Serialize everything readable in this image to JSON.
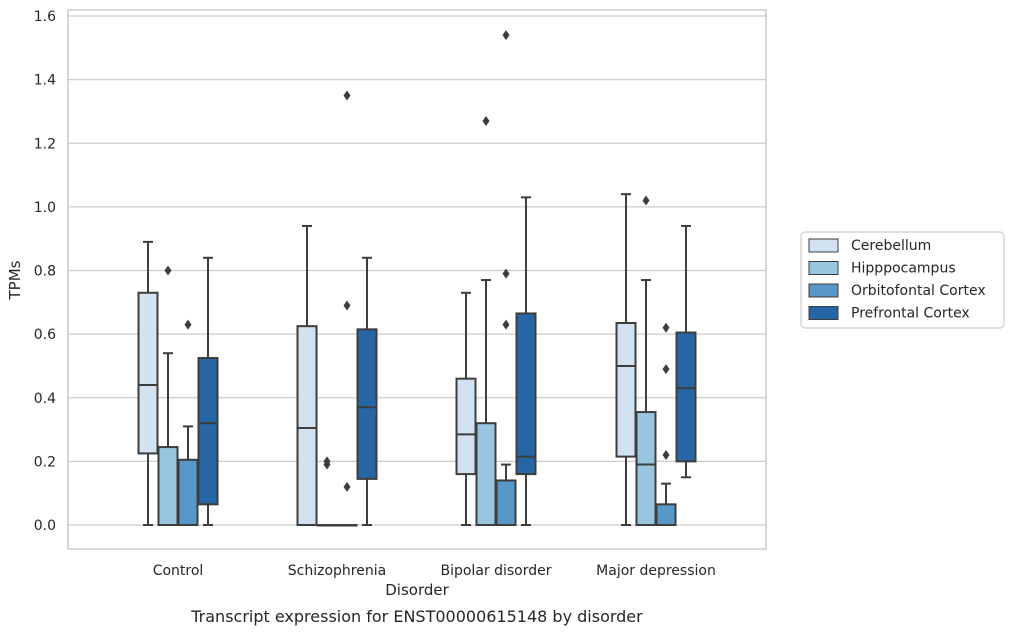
{
  "chart_data": {
    "type": "box",
    "title": "",
    "caption": "Transcript expression for ENST00000615148 by disorder",
    "xlabel": "Disorder",
    "ylabel": "TPMs",
    "ylim": [
      -0.075,
      1.62
    ],
    "yticks": [
      0.0,
      0.2,
      0.4,
      0.6,
      0.8,
      1.0,
      1.2,
      1.4,
      1.6
    ],
    "ytick_labels": [
      "0.0",
      "0.2",
      "0.4",
      "0.6",
      "0.8",
      "1.0",
      "1.2",
      "1.4",
      "1.6"
    ],
    "grid": "horizontal",
    "legend_position": "right",
    "categories": [
      "Control",
      "Schizophrenia",
      "Bipolar disorder",
      "Major depression"
    ],
    "series": [
      {
        "name": "Cerebellum",
        "color": "#d2e2f1",
        "boxes": [
          {
            "whislo": 0.0,
            "q1": 0.225,
            "med": 0.44,
            "q3": 0.73,
            "whishi": 0.89,
            "fliers": []
          },
          {
            "whislo": 0.0,
            "q1": 0.0,
            "med": 0.305,
            "q3": 0.625,
            "whishi": 0.94,
            "fliers": []
          },
          {
            "whislo": 0.0,
            "q1": 0.16,
            "med": 0.285,
            "q3": 0.46,
            "whishi": 0.73,
            "fliers": []
          },
          {
            "whislo": 0.0,
            "q1": 0.215,
            "med": 0.5,
            "q3": 0.635,
            "whishi": 1.04,
            "fliers": []
          }
        ]
      },
      {
        "name": "Hipppocampus",
        "color": "#98c5e0",
        "boxes": [
          {
            "whislo": 0.0,
            "q1": 0.0,
            "med": 0.0,
            "q3": 0.245,
            "whishi": 0.54,
            "fliers": [
              0.8
            ]
          },
          {
            "whislo": 0.0,
            "q1": 0.0,
            "med": 0.0,
            "q3": 0.0,
            "whishi": 0.0,
            "fliers": [
              0.2,
              0.19
            ]
          },
          {
            "whislo": 0.0,
            "q1": 0.0,
            "med": 0.0,
            "q3": 0.32,
            "whishi": 0.77,
            "fliers": [
              1.27
            ]
          },
          {
            "whislo": 0.0,
            "q1": 0.0,
            "med": 0.19,
            "q3": 0.355,
            "whishi": 0.77,
            "fliers": [
              1.02
            ]
          }
        ]
      },
      {
        "name": "Orbitofontal Cortex",
        "color": "#5898c9",
        "boxes": [
          {
            "whislo": 0.0,
            "q1": 0.0,
            "med": 0.0,
            "q3": 0.205,
            "whishi": 0.31,
            "fliers": [
              0.63
            ]
          },
          {
            "whislo": 0.0,
            "q1": 0.0,
            "med": 0.0,
            "q3": 0.0,
            "whishi": 0.0,
            "fliers": [
              1.35,
              0.69,
              0.12
            ]
          },
          {
            "whislo": 0.0,
            "q1": 0.0,
            "med": 0.0,
            "q3": 0.14,
            "whishi": 0.19,
            "fliers": [
              0.79,
              0.63,
              1.54
            ]
          },
          {
            "whislo": 0.0,
            "q1": 0.0,
            "med": 0.0,
            "q3": 0.065,
            "whishi": 0.13,
            "fliers": [
              0.62,
              0.49,
              0.22
            ]
          }
        ]
      },
      {
        "name": "Prefrontal Cortex",
        "color": "#2666a5",
        "boxes": [
          {
            "whislo": 0.0,
            "q1": 0.065,
            "med": 0.32,
            "q3": 0.525,
            "whishi": 0.84,
            "fliers": []
          },
          {
            "whislo": 0.0,
            "q1": 0.145,
            "med": 0.37,
            "q3": 0.615,
            "whishi": 0.84,
            "fliers": []
          },
          {
            "whislo": 0.0,
            "q1": 0.16,
            "med": 0.215,
            "q3": 0.665,
            "whishi": 1.03,
            "fliers": []
          },
          {
            "whislo": 0.15,
            "q1": 0.2,
            "med": 0.43,
            "q3": 0.605,
            "whishi": 0.94,
            "fliers": []
          }
        ]
      }
    ],
    "style": {
      "line_color": "#3d3d3d",
      "grid_color": "#cccccc",
      "frame_color": "#cccccc"
    }
  }
}
